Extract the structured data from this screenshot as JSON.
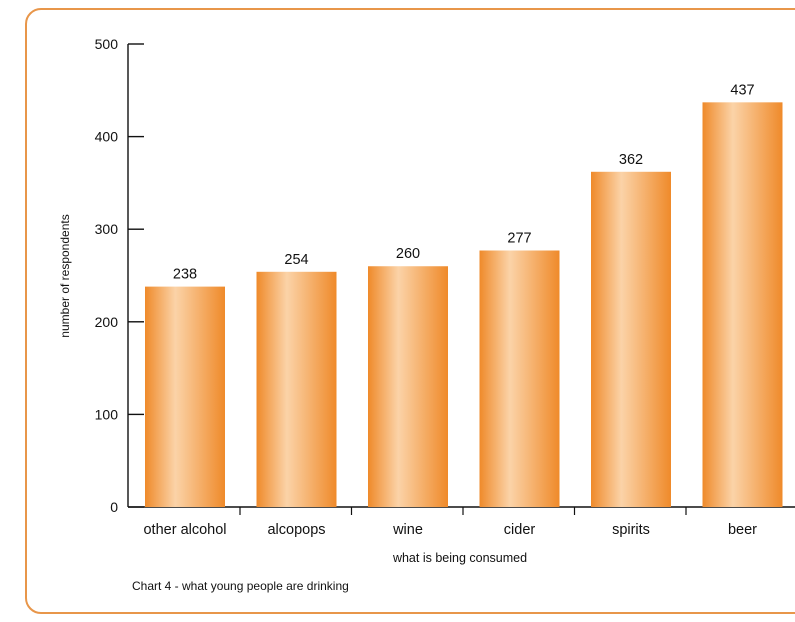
{
  "chart_data": {
    "type": "bar",
    "categories": [
      "other alcohol",
      "alcopops",
      "wine",
      "cider",
      "spirits",
      "beer"
    ],
    "values": [
      238,
      254,
      260,
      277,
      362,
      437
    ],
    "data_labels": [
      "238",
      "254",
      "260",
      "277",
      "362",
      "437"
    ],
    "title": "",
    "xlabel": "what is being consumed",
    "ylabel": "number of respondents",
    "ylim": [
      0,
      500
    ],
    "yticks": [
      "0",
      "100",
      "200",
      "300",
      "400",
      "500"
    ],
    "grid": false,
    "legend": "none",
    "bar_color": "#ef8a2a",
    "bar_highlight": "#fbd3a8",
    "caption": "Chart 4 - what young people are drinking"
  }
}
